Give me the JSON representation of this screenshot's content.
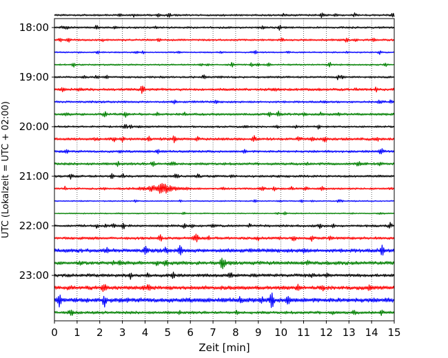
{
  "chart_data": {
    "type": "line",
    "title": "",
    "xlabel": "Zeit  [min]",
    "ylabel": "UTC (Lokalzeit = UTC + 02:00)",
    "xlim": [
      0,
      15
    ],
    "x_ticks": [
      0,
      1,
      2,
      3,
      4,
      5,
      6,
      7,
      8,
      9,
      10,
      11,
      12,
      13,
      14,
      15
    ],
    "y_tick_labels": [
      "18:00",
      "19:00",
      "20:00",
      "21:00",
      "22:00",
      "23:00"
    ],
    "grid": "vertical dotted",
    "trace_minutes": 15,
    "traces_per_hour": 4,
    "colors": [
      "#000000",
      "#ff0000",
      "#0000ff",
      "#008000"
    ],
    "series": [
      {
        "start": "17:45",
        "color": "#000000",
        "amplitude": 1.0
      },
      {
        "start": "18:00",
        "color": "#000000",
        "amplitude": 1.0
      },
      {
        "start": "18:15",
        "color": "#ff0000",
        "amplitude": 1.0
      },
      {
        "start": "18:30",
        "color": "#0000ff",
        "amplitude": 0.7
      },
      {
        "start": "18:45",
        "color": "#008000",
        "amplitude": 0.8
      },
      {
        "start": "19:00",
        "color": "#000000",
        "amplitude": 1.0
      },
      {
        "start": "19:15",
        "color": "#ff0000",
        "amplitude": 1.3
      },
      {
        "start": "19:30",
        "color": "#0000ff",
        "amplitude": 1.1
      },
      {
        "start": "19:45",
        "color": "#008000",
        "amplitude": 1.2
      },
      {
        "start": "20:00",
        "color": "#000000",
        "amplitude": 1.0
      },
      {
        "start": "20:15",
        "color": "#ff0000",
        "amplitude": 1.4
      },
      {
        "start": "20:30",
        "color": "#0000ff",
        "amplitude": 1.2
      },
      {
        "start": "20:45",
        "color": "#008000",
        "amplitude": 1.3
      },
      {
        "start": "21:00",
        "color": "#000000",
        "amplitude": 1.2
      },
      {
        "start": "21:15",
        "color": "#ff0000",
        "amplitude": 1.0,
        "event_minute": 4.8,
        "event_amplitude": 8
      },
      {
        "start": "21:30",
        "color": "#0000ff",
        "amplitude": 0.6
      },
      {
        "start": "21:45",
        "color": "#008000",
        "amplitude": 0.6
      },
      {
        "start": "22:00",
        "color": "#000000",
        "amplitude": 1.2
      },
      {
        "start": "22:15",
        "color": "#ff0000",
        "amplitude": 1.4
      },
      {
        "start": "22:30",
        "color": "#0000ff",
        "amplitude": 2.0
      },
      {
        "start": "22:45",
        "color": "#008000",
        "amplitude": 1.8
      },
      {
        "start": "23:00",
        "color": "#000000",
        "amplitude": 1.6
      },
      {
        "start": "23:15",
        "color": "#ff0000",
        "amplitude": 2.0
      },
      {
        "start": "23:30",
        "color": "#0000ff",
        "amplitude": 2.4
      },
      {
        "start": "23:45",
        "color": "#008000",
        "amplitude": 1.4
      }
    ]
  }
}
